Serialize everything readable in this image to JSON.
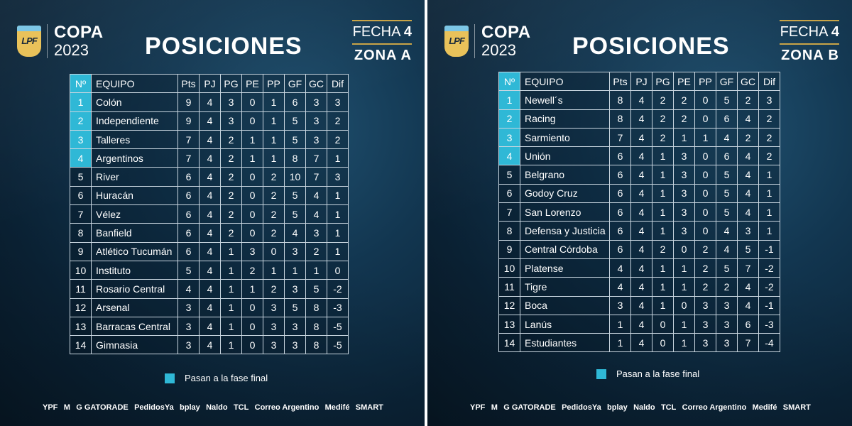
{
  "panels": [
    {
      "copa": "COPA",
      "year": "2023",
      "title": "POSICIONES",
      "fecha_label": "FECHA",
      "fecha_num": "4",
      "zona": "ZONA A",
      "headers": [
        "Nº",
        "EQUIPO",
        "Pts",
        "PJ",
        "PG",
        "PE",
        "PP",
        "GF",
        "GC",
        "Dif"
      ],
      "rows": [
        {
          "pos": "1",
          "team": "Colón",
          "stats": [
            "9",
            "4",
            "3",
            "0",
            "1",
            "6",
            "3",
            "3"
          ],
          "qualified": true
        },
        {
          "pos": "2",
          "team": "Independiente",
          "stats": [
            "9",
            "4",
            "3",
            "0",
            "1",
            "5",
            "3",
            "2"
          ],
          "qualified": true
        },
        {
          "pos": "3",
          "team": "Talleres",
          "stats": [
            "7",
            "4",
            "2",
            "1",
            "1",
            "5",
            "3",
            "2"
          ],
          "qualified": true
        },
        {
          "pos": "4",
          "team": "Argentinos",
          "stats": [
            "7",
            "4",
            "2",
            "1",
            "1",
            "8",
            "7",
            "1"
          ],
          "qualified": true
        },
        {
          "pos": "5",
          "team": "River",
          "stats": [
            "6",
            "4",
            "2",
            "0",
            "2",
            "10",
            "7",
            "3"
          ],
          "qualified": false
        },
        {
          "pos": "6",
          "team": "Huracán",
          "stats": [
            "6",
            "4",
            "2",
            "0",
            "2",
            "5",
            "4",
            "1"
          ],
          "qualified": false
        },
        {
          "pos": "7",
          "team": "Vélez",
          "stats": [
            "6",
            "4",
            "2",
            "0",
            "2",
            "5",
            "4",
            "1"
          ],
          "qualified": false
        },
        {
          "pos": "8",
          "team": "Banfield",
          "stats": [
            "6",
            "4",
            "2",
            "0",
            "2",
            "4",
            "3",
            "1"
          ],
          "qualified": false
        },
        {
          "pos": "9",
          "team": "Atlético Tucumán",
          "stats": [
            "6",
            "4",
            "1",
            "3",
            "0",
            "3",
            "2",
            "1"
          ],
          "qualified": false
        },
        {
          "pos": "10",
          "team": "Instituto",
          "stats": [
            "5",
            "4",
            "1",
            "2",
            "1",
            "1",
            "1",
            "0"
          ],
          "qualified": false
        },
        {
          "pos": "11",
          "team": "Rosario Central",
          "stats": [
            "4",
            "4",
            "1",
            "1",
            "2",
            "3",
            "5",
            "-2"
          ],
          "qualified": false
        },
        {
          "pos": "12",
          "team": "Arsenal",
          "stats": [
            "3",
            "4",
            "1",
            "0",
            "3",
            "5",
            "8",
            "-3"
          ],
          "qualified": false
        },
        {
          "pos": "13",
          "team": "Barracas Central",
          "stats": [
            "3",
            "4",
            "1",
            "0",
            "3",
            "3",
            "8",
            "-5"
          ],
          "qualified": false
        },
        {
          "pos": "14",
          "team": "Gimnasia",
          "stats": [
            "3",
            "4",
            "1",
            "0",
            "3",
            "3",
            "8",
            "-5"
          ],
          "qualified": false
        }
      ],
      "legend": "Pasan a la fase final"
    },
    {
      "copa": "COPA",
      "year": "2023",
      "title": "POSICIONES",
      "fecha_label": "FECHA",
      "fecha_num": "4",
      "zona": "ZONA B",
      "headers": [
        "Nº",
        "EQUIPO",
        "Pts",
        "PJ",
        "PG",
        "PE",
        "PP",
        "GF",
        "GC",
        "Dif"
      ],
      "rows": [
        {
          "pos": "1",
          "team": "Newell´s",
          "stats": [
            "8",
            "4",
            "2",
            "2",
            "0",
            "5",
            "2",
            "3"
          ],
          "qualified": true
        },
        {
          "pos": "2",
          "team": "Racing",
          "stats": [
            "8",
            "4",
            "2",
            "2",
            "0",
            "6",
            "4",
            "2"
          ],
          "qualified": true
        },
        {
          "pos": "3",
          "team": "Sarmiento",
          "stats": [
            "7",
            "4",
            "2",
            "1",
            "1",
            "4",
            "2",
            "2"
          ],
          "qualified": true
        },
        {
          "pos": "4",
          "team": "Unión",
          "stats": [
            "6",
            "4",
            "1",
            "3",
            "0",
            "6",
            "4",
            "2"
          ],
          "qualified": true
        },
        {
          "pos": "5",
          "team": "Belgrano",
          "stats": [
            "6",
            "4",
            "1",
            "3",
            "0",
            "5",
            "4",
            "1"
          ],
          "qualified": false
        },
        {
          "pos": "6",
          "team": "Godoy Cruz",
          "stats": [
            "6",
            "4",
            "1",
            "3",
            "0",
            "5",
            "4",
            "1"
          ],
          "qualified": false
        },
        {
          "pos": "7",
          "team": "San Lorenzo",
          "stats": [
            "6",
            "4",
            "1",
            "3",
            "0",
            "5",
            "4",
            "1"
          ],
          "qualified": false
        },
        {
          "pos": "8",
          "team": "Defensa y Justicia",
          "stats": [
            "6",
            "4",
            "1",
            "3",
            "0",
            "4",
            "3",
            "1"
          ],
          "qualified": false
        },
        {
          "pos": "9",
          "team": "Central Córdoba",
          "stats": [
            "6",
            "4",
            "2",
            "0",
            "2",
            "4",
            "5",
            "-1"
          ],
          "qualified": false
        },
        {
          "pos": "10",
          "team": "Platense",
          "stats": [
            "4",
            "4",
            "1",
            "1",
            "2",
            "5",
            "7",
            "-2"
          ],
          "qualified": false
        },
        {
          "pos": "11",
          "team": "Tigre",
          "stats": [
            "4",
            "4",
            "1",
            "1",
            "2",
            "2",
            "4",
            "-2"
          ],
          "qualified": false
        },
        {
          "pos": "12",
          "team": "Boca",
          "stats": [
            "3",
            "4",
            "1",
            "0",
            "3",
            "3",
            "4",
            "-1"
          ],
          "qualified": false
        },
        {
          "pos": "13",
          "team": "Lanús",
          "stats": [
            "1",
            "4",
            "0",
            "1",
            "3",
            "3",
            "6",
            "-3"
          ],
          "qualified": false
        },
        {
          "pos": "14",
          "team": "Estudiantes",
          "stats": [
            "1",
            "4",
            "0",
            "1",
            "3",
            "3",
            "7",
            "-4"
          ],
          "qualified": false
        }
      ],
      "legend": "Pasan a la fase final"
    }
  ],
  "logo_text": "LPF",
  "sponsors": [
    "YPF",
    "M",
    "G GATORADE",
    "PedidosYa",
    "bplay",
    "Naldo",
    "TCL",
    "Correo Argentino",
    "Medifé",
    "SMART"
  ],
  "colors": {
    "qualified": "#2fb8d6",
    "gold": "#c9a447",
    "background": "#0b2438"
  }
}
